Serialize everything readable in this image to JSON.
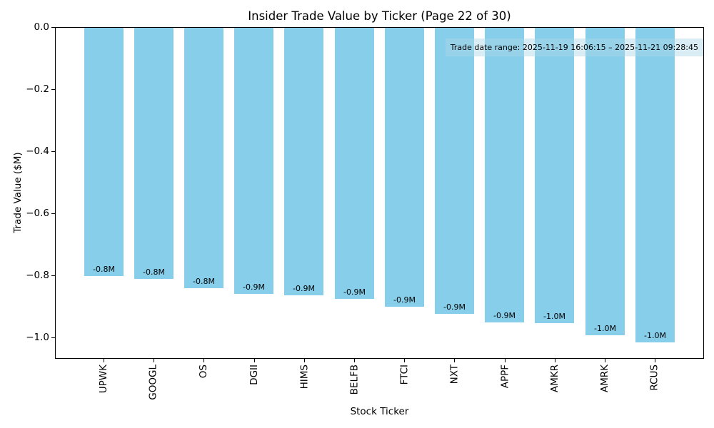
{
  "chart_data": {
    "type": "bar",
    "title": "Insider Trade Value by Ticker (Page 22 of 30)",
    "xlabel": "Stock Ticker",
    "ylabel": "Trade Value ($M)",
    "categories": [
      "UPWK",
      "GOOGL",
      "OS",
      "DGII",
      "HIMS",
      "BELFB",
      "FTCI",
      "NXT",
      "APPF",
      "AMKR",
      "AMRK",
      "RCUS"
    ],
    "values": [
      -0.8,
      -0.81,
      -0.84,
      -0.857,
      -0.862,
      -0.874,
      -0.899,
      -0.922,
      -0.949,
      -0.952,
      -0.991,
      -1.014
    ],
    "bar_labels": [
      "-0.8M",
      "-0.8M",
      "-0.8M",
      "-0.9M",
      "-0.9M",
      "-0.9M",
      "-0.9M",
      "-0.9M",
      "-0.9M",
      "-1.0M",
      "-1.0M",
      "-1.0M"
    ],
    "ytick_labels": [
      "0.0",
      "−0.2",
      "−0.4",
      "−0.6",
      "−0.8",
      "−1.0"
    ],
    "ytick_values": [
      0,
      -0.2,
      -0.4,
      -0.6,
      -0.8,
      -1.0
    ],
    "ylim": [
      -1.07,
      0
    ],
    "grid": false,
    "legend": "none",
    "bar_color": "#87CEEB",
    "annotation": "Trade date range: 2025-11-19 16:06:15 – 2025-11-21 09:28:45",
    "annotation_bg": "rgba(173,216,230,0.45)"
  }
}
